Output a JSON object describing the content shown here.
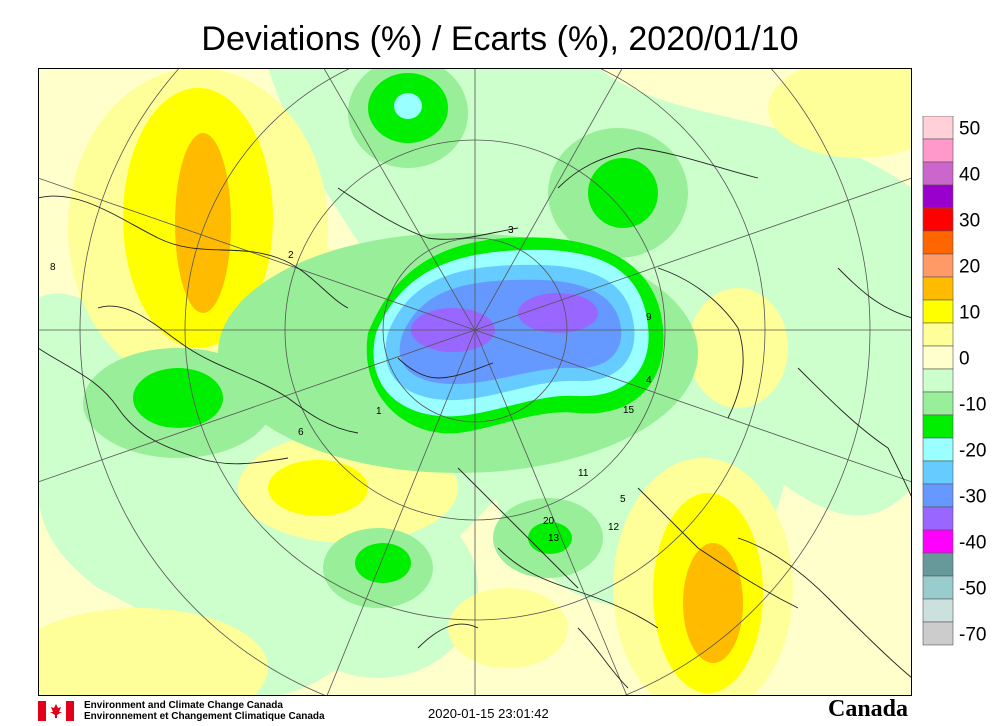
{
  "title": "Deviations (%) / Ecarts (%), 2020/01/10",
  "legend": {
    "levels": [
      {
        "label": "50",
        "color": "#ffd0d8"
      },
      {
        "label": "",
        "color": "#ff99cc"
      },
      {
        "label": "40",
        "color": "#cc66cc"
      },
      {
        "label": "",
        "color": "#9900cc"
      },
      {
        "label": "30",
        "color": "#ff0000"
      },
      {
        "label": "",
        "color": "#ff6600"
      },
      {
        "label": "20",
        "color": "#ff9966"
      },
      {
        "label": "",
        "color": "#ffbb00"
      },
      {
        "label": "10",
        "color": "#ffff00"
      },
      {
        "label": "",
        "color": "#ffff99"
      },
      {
        "label": "0",
        "color": "#ffffcc"
      },
      {
        "label": "",
        "color": "#ccffcc"
      },
      {
        "label": "-10",
        "color": "#99ee99"
      },
      {
        "label": "",
        "color": "#00ee00"
      },
      {
        "label": "-20",
        "color": "#99ffff"
      },
      {
        "label": "",
        "color": "#66ccff"
      },
      {
        "label": "-30",
        "color": "#6699ff"
      },
      {
        "label": "",
        "color": "#9966ff"
      },
      {
        "label": "-40",
        "color": "#ff00ff"
      },
      {
        "label": "",
        "color": "#669999"
      },
      {
        "label": "-50",
        "color": "#99cccc"
      },
      {
        "label": "",
        "color": "#cce0dd"
      },
      {
        "label": "-70",
        "color": "#cccccc"
      }
    ]
  },
  "station_labels": [
    "8",
    "2",
    "3",
    "11",
    "15",
    "4",
    "6",
    "9",
    "20",
    "13",
    "5",
    "12",
    "1"
  ],
  "footer": {
    "agency_en": "Environment and Climate Change Canada",
    "agency_fr": "Environnement et Changement Climatique Canada",
    "timestamp": "2020-01-15 23:01:42",
    "wordmark": "Canada"
  }
}
